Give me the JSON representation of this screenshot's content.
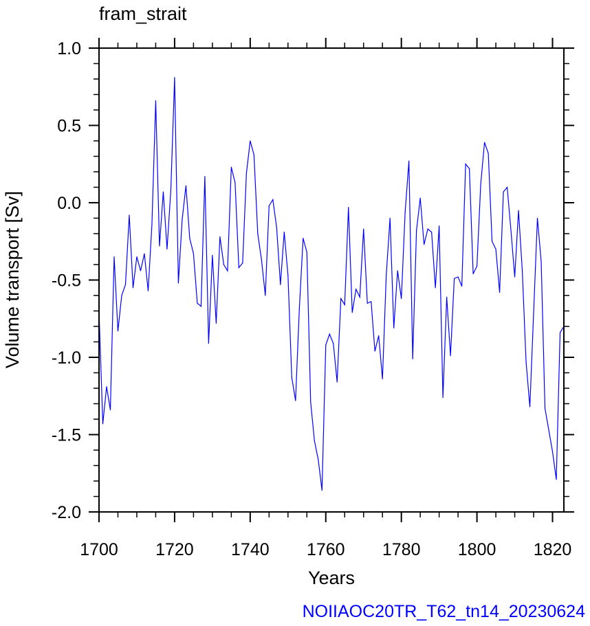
{
  "chart_data": {
    "type": "line",
    "title": "fram_strait",
    "xlabel": "Years",
    "ylabel": "Volume transport [Sv]",
    "xlim": [
      1700,
      1823
    ],
    "ylim": [
      -2.0,
      1.0
    ],
    "x_ticks": [
      "1700",
      "1720",
      "1740",
      "1760",
      "1780",
      "1800",
      "1820"
    ],
    "y_ticks": [
      "1.0",
      "0.5",
      "0.0",
      "-0.5",
      "-1.0",
      "-1.5",
      "-2.0"
    ],
    "grid": false,
    "line_color": "#0000ff",
    "x": [
      1700,
      1701,
      1702,
      1703,
      1704,
      1705,
      1706,
      1707,
      1708,
      1709,
      1710,
      1711,
      1712,
      1713,
      1714,
      1715,
      1716,
      1717,
      1718,
      1719,
      1720,
      1721,
      1722,
      1723,
      1724,
      1725,
      1726,
      1727,
      1728,
      1729,
      1730,
      1731,
      1732,
      1733,
      1734,
      1735,
      1736,
      1737,
      1738,
      1739,
      1740,
      1741,
      1742,
      1743,
      1744,
      1745,
      1746,
      1747,
      1748,
      1749,
      1750,
      1751,
      1752,
      1753,
      1754,
      1755,
      1756,
      1757,
      1758,
      1759,
      1760,
      1761,
      1762,
      1763,
      1764,
      1765,
      1766,
      1767,
      1768,
      1769,
      1770,
      1771,
      1772,
      1773,
      1774,
      1775,
      1776,
      1777,
      1778,
      1779,
      1780,
      1781,
      1782,
      1783,
      1784,
      1785,
      1786,
      1787,
      1788,
      1789,
      1790,
      1791,
      1792,
      1793,
      1794,
      1795,
      1796,
      1797,
      1798,
      1799,
      1800,
      1801,
      1802,
      1803,
      1804,
      1805,
      1806,
      1807,
      1808,
      1809,
      1810,
      1811,
      1812,
      1813,
      1814,
      1815,
      1816,
      1817,
      1818,
      1819,
      1820,
      1821,
      1822,
      1823
    ],
    "values": [
      -0.7,
      -1.43,
      -1.19,
      -1.34,
      -0.35,
      -0.83,
      -0.6,
      -0.53,
      -0.08,
      -0.55,
      -0.35,
      -0.44,
      -0.33,
      -0.57,
      -0.14,
      0.66,
      -0.28,
      0.07,
      -0.3,
      0.08,
      0.81,
      -0.52,
      -0.11,
      0.11,
      -0.23,
      -0.33,
      -0.65,
      -0.67,
      0.17,
      -0.91,
      -0.34,
      -0.78,
      -0.22,
      -0.4,
      -0.44,
      0.23,
      0.13,
      -0.42,
      -0.39,
      0.19,
      0.4,
      0.31,
      -0.2,
      -0.37,
      -0.6,
      -0.02,
      0.02,
      -0.16,
      -0.53,
      -0.19,
      -0.47,
      -1.13,
      -1.28,
      -0.69,
      -0.23,
      -0.32,
      -1.29,
      -1.54,
      -1.66,
      -1.86,
      -0.92,
      -0.85,
      -0.91,
      -1.16,
      -0.62,
      -0.66,
      -0.03,
      -0.71,
      -0.56,
      -0.61,
      -0.17,
      -0.65,
      -0.64,
      -0.96,
      -0.86,
      -1.14,
      -0.47,
      -0.1,
      -0.81,
      -0.44,
      -0.62,
      -0.06,
      0.27,
      -1.01,
      -0.18,
      0.03,
      -0.27,
      -0.17,
      -0.19,
      -0.55,
      -0.15,
      -1.26,
      -0.61,
      -0.99,
      -0.49,
      -0.48,
      -0.54,
      0.25,
      0.22,
      -0.46,
      -0.41,
      0.12,
      0.39,
      0.32,
      -0.25,
      -0.3,
      -0.58,
      0.07,
      0.1,
      -0.18,
      -0.48,
      -0.05,
      -0.44,
      -1.03,
      -1.32,
      -0.71,
      -0.1,
      -0.38,
      -1.33,
      -1.47,
      -1.61,
      -1.79,
      -0.84,
      -0.8
    ]
  },
  "run_label": "NOIIAOC20TR_T62_tn14_20230624",
  "run_label_color": "#0000ff"
}
